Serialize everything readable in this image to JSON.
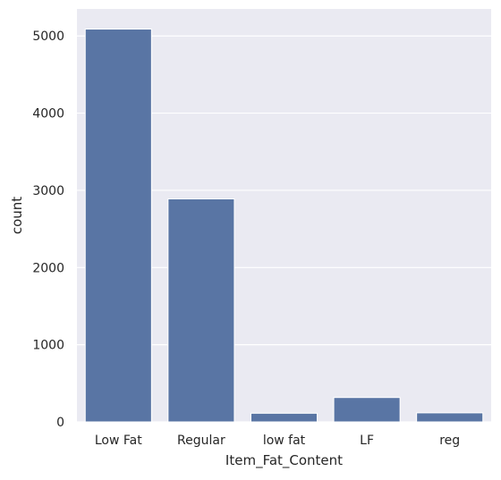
{
  "colors": {
    "bar": "#5975a4",
    "plot_background": "#eaeaf2",
    "grid": "#ffffff",
    "text": "#262626"
  },
  "chart_data": {
    "type": "bar",
    "title": "",
    "xlabel": "Item_Fat_Content",
    "ylabel": "count",
    "categories": [
      "Low Fat",
      "Regular",
      "low fat",
      "LF",
      "reg"
    ],
    "values": [
      5089,
      2889,
      112,
      316,
      117
    ],
    "ylim": [
      0,
      5350
    ],
    "yticks": [
      0,
      1000,
      2000,
      3000,
      4000,
      5000
    ],
    "grid": true,
    "legend": "none"
  }
}
